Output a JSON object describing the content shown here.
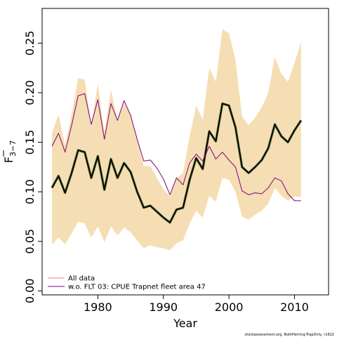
{
  "chart_data": {
    "type": "line",
    "xlabel": "Year",
    "ylabel": "F",
    "ylabel_subscript": "3−7",
    "xlim": [
      1971.5,
      2015.2
    ],
    "ylim": [
      -0.004,
      0.285
    ],
    "x_ticks": [
      1980,
      1990,
      2000,
      2010
    ],
    "y_ticks": [
      0.0,
      0.05,
      0.1,
      0.15,
      0.2,
      0.25
    ],
    "y_tick_labels": [
      "0.00",
      "0.05",
      "0.10",
      "0.15",
      "0.20",
      "0.25"
    ],
    "grid": false,
    "legend_position": "bottom-left",
    "credit": "stockassessment.org, BothHerring-TrapOnly, r1622",
    "colors": {
      "band": "#f5deb3",
      "all_data": "#000000",
      "all_data_halo": "#e8b4b4",
      "excluded": "#800080",
      "legend_all_data": "#f08080"
    },
    "years": [
      1973,
      1974,
      1975,
      1976,
      1977,
      1978,
      1979,
      1980,
      1981,
      1982,
      1983,
      1984,
      1985,
      1986,
      1987,
      1988,
      1989,
      1990,
      1991,
      1992,
      1993,
      1994,
      1995,
      1996,
      1997,
      1998,
      1999,
      2000,
      2001,
      2002,
      2003,
      2004,
      2005,
      2006,
      2007,
      2008,
      2009,
      2010,
      2011
    ],
    "band_upper": [
      0.159,
      0.178,
      0.147,
      0.178,
      0.215,
      0.213,
      0.167,
      0.209,
      0.16,
      0.203,
      0.172,
      0.19,
      0.178,
      0.154,
      0.126,
      0.126,
      0.114,
      0.103,
      0.095,
      0.114,
      0.119,
      0.156,
      0.187,
      0.173,
      0.225,
      0.211,
      0.264,
      0.26,
      0.233,
      0.176,
      0.167,
      0.175,
      0.185,
      0.2,
      0.236,
      0.219,
      0.211,
      0.23,
      0.251
    ],
    "band_lower": [
      0.047,
      0.054,
      0.047,
      0.058,
      0.07,
      0.068,
      0.054,
      0.065,
      0.049,
      0.065,
      0.056,
      0.064,
      0.059,
      0.051,
      0.043,
      0.046,
      0.044,
      0.043,
      0.041,
      0.048,
      0.051,
      0.068,
      0.081,
      0.074,
      0.096,
      0.09,
      0.114,
      0.112,
      0.1,
      0.075,
      0.072,
      0.077,
      0.081,
      0.088,
      0.104,
      0.096,
      0.091,
      0.095,
      0.095
    ],
    "series": [
      {
        "name": "All data",
        "values": [
          0.104,
          0.116,
          0.099,
          0.119,
          0.142,
          0.14,
          0.114,
          0.136,
          0.102,
          0.133,
          0.114,
          0.129,
          0.12,
          0.1,
          0.084,
          0.086,
          0.08,
          0.074,
          0.069,
          0.082,
          0.084,
          0.112,
          0.134,
          0.123,
          0.161,
          0.151,
          0.189,
          0.187,
          0.165,
          0.125,
          0.119,
          0.125,
          0.132,
          0.144,
          0.168,
          0.156,
          0.15,
          0.162,
          0.172
        ]
      },
      {
        "name": "w.o. FLT 03: CPUE Trapnet fleet area 47",
        "values": [
          0.146,
          0.159,
          0.14,
          0.167,
          0.197,
          0.199,
          0.168,
          0.193,
          0.153,
          0.189,
          0.172,
          0.192,
          0.177,
          0.153,
          0.131,
          0.132,
          0.124,
          0.113,
          0.097,
          0.114,
          0.107,
          0.129,
          0.138,
          0.131,
          0.146,
          0.133,
          0.14,
          0.132,
          0.125,
          0.101,
          0.097,
          0.099,
          0.098,
          0.104,
          0.114,
          0.111,
          0.098,
          0.091,
          0.091
        ]
      }
    ]
  }
}
